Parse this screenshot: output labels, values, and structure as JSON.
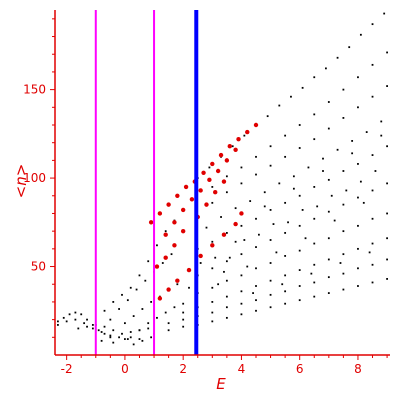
{
  "chart_data": {
    "type": "scatter",
    "xlabel": "E",
    "ylabel": "<n>",
    "xlim": [
      -2.4,
      9.1
    ],
    "ylim": [
      0,
      195
    ],
    "xticks": [
      -2,
      0,
      2,
      4,
      6,
      8
    ],
    "yticks": [
      50,
      100,
      150
    ],
    "grid": false,
    "colors": {
      "axis": "#e00000",
      "black_points": "#000000",
      "red_points": "#e00000",
      "magenta_lines": "#ff00ff",
      "blue_line": "#0000ff"
    },
    "vertical_lines": [
      {
        "x": -1.0,
        "color": "#ff00ff"
      },
      {
        "x": 1.0,
        "color": "#ff00ff"
      },
      {
        "x": 2.45,
        "color": "#0000ff"
      }
    ],
    "series": [
      {
        "points_black": [
          [
            -2.3,
            19
          ],
          [
            -2.1,
            21
          ],
          [
            -1.9,
            23
          ],
          [
            -1.7,
            24
          ],
          [
            -1.5,
            23
          ],
          [
            -1.3,
            20
          ],
          [
            -1.1,
            17
          ],
          [
            -0.9,
            14
          ],
          [
            -0.7,
            12
          ],
          [
            -0.5,
            10
          ],
          [
            -2.3,
            17
          ],
          [
            -2.0,
            19
          ],
          [
            -1.7,
            20
          ],
          [
            -1.4,
            18
          ],
          [
            -1.1,
            15
          ],
          [
            -0.8,
            13
          ],
          [
            -0.5,
            11
          ],
          [
            -0.2,
            10
          ],
          [
            0.1,
            9
          ],
          [
            -1.6,
            15
          ],
          [
            -1.3,
            16
          ],
          [
            -1.0,
            17
          ],
          [
            -0.7,
            16
          ],
          [
            -0.4,
            14
          ],
          [
            -0.1,
            12
          ],
          [
            0.2,
            10
          ],
          [
            0.5,
            9
          ],
          [
            -0.8,
            8
          ],
          [
            -0.4,
            7
          ],
          [
            0.0,
            9
          ],
          [
            0.3,
            6
          ],
          [
            0.6,
            8
          ],
          [
            0.9,
            10
          ],
          [
            0.2,
            13
          ],
          [
            0.5,
            14
          ],
          [
            0.8,
            15
          ],
          [
            -0.7,
            25
          ],
          [
            -0.4,
            30
          ],
          [
            -0.1,
            34
          ],
          [
            0.2,
            38
          ],
          [
            0.5,
            45
          ],
          [
            0.8,
            53
          ],
          [
            1.1,
            62
          ],
          [
            1.4,
            70
          ],
          [
            1.7,
            76
          ],
          [
            -0.5,
            20
          ],
          [
            -0.2,
            26
          ],
          [
            0.1,
            31
          ],
          [
            0.4,
            37
          ],
          [
            0.7,
            42
          ],
          [
            1.0,
            47
          ],
          [
            1.3,
            52
          ],
          [
            1.6,
            57
          ],
          [
            0.0,
            18
          ],
          [
            0.3,
            22
          ],
          [
            0.6,
            26
          ],
          [
            0.9,
            30
          ],
          [
            1.2,
            33
          ],
          [
            1.5,
            37
          ],
          [
            1.8,
            40
          ],
          [
            0.5,
            14
          ],
          [
            0.8,
            18
          ],
          [
            1.1,
            21
          ],
          [
            1.4,
            24
          ],
          [
            1.7,
            27
          ],
          [
            2.0,
            29
          ],
          [
            2.5,
            100
          ],
          [
            2.9,
            106
          ],
          [
            3.3,
            112
          ],
          [
            3.7,
            118
          ],
          [
            4.1,
            124
          ],
          [
            4.5,
            130
          ],
          [
            4.9,
            135
          ],
          [
            5.3,
            141
          ],
          [
            5.7,
            146
          ],
          [
            6.1,
            151
          ],
          [
            6.5,
            157
          ],
          [
            6.9,
            162
          ],
          [
            7.3,
            168
          ],
          [
            7.7,
            174
          ],
          [
            8.1,
            181
          ],
          [
            8.5,
            187
          ],
          [
            8.9,
            193
          ],
          [
            3.0,
            95
          ],
          [
            3.5,
            101
          ],
          [
            4.0,
            106
          ],
          [
            4.5,
            112
          ],
          [
            5.0,
            118
          ],
          [
            5.5,
            124
          ],
          [
            6.0,
            130
          ],
          [
            6.5,
            136
          ],
          [
            7.0,
            143
          ],
          [
            7.5,
            150
          ],
          [
            8.0,
            157
          ],
          [
            8.5,
            164
          ],
          [
            9.0,
            171
          ],
          [
            3.0,
            86
          ],
          [
            3.5,
            92
          ],
          [
            4.0,
            97
          ],
          [
            4.5,
            102
          ],
          [
            5.0,
            107
          ],
          [
            5.5,
            112
          ],
          [
            6.0,
            117
          ],
          [
            6.5,
            122
          ],
          [
            7.0,
            128
          ],
          [
            7.5,
            134
          ],
          [
            8.0,
            140
          ],
          [
            8.5,
            146
          ],
          [
            9.0,
            152
          ],
          [
            2.8,
            72
          ],
          [
            3.3,
            78
          ],
          [
            3.8,
            83
          ],
          [
            4.3,
            87
          ],
          [
            4.8,
            92
          ],
          [
            5.3,
            97
          ],
          [
            5.8,
            101
          ],
          [
            6.3,
            106
          ],
          [
            6.8,
            111
          ],
          [
            7.3,
            116
          ],
          [
            7.8,
            121
          ],
          [
            8.3,
            126
          ],
          [
            8.8,
            132
          ],
          [
            2.5,
            60
          ],
          [
            3.0,
            64
          ],
          [
            3.5,
            69
          ],
          [
            4.0,
            73
          ],
          [
            4.5,
            77
          ],
          [
            5.0,
            82
          ],
          [
            5.5,
            86
          ],
          [
            6.0,
            90
          ],
          [
            6.5,
            95
          ],
          [
            7.0,
            99
          ],
          [
            7.5,
            104
          ],
          [
            8.0,
            108
          ],
          [
            8.5,
            113
          ],
          [
            9.0,
            118
          ],
          [
            2.5,
            45
          ],
          [
            3.0,
            49
          ],
          [
            3.5,
            53
          ],
          [
            4.0,
            57
          ],
          [
            4.5,
            61
          ],
          [
            5.0,
            65
          ],
          [
            5.5,
            69
          ],
          [
            6.0,
            73
          ],
          [
            6.5,
            77
          ],
          [
            7.0,
            81
          ],
          [
            7.5,
            85
          ],
          [
            8.0,
            89
          ],
          [
            8.5,
            93
          ],
          [
            9.0,
            97
          ],
          [
            2.5,
            35
          ],
          [
            3.0,
            38
          ],
          [
            3.5,
            42
          ],
          [
            4.0,
            45
          ],
          [
            4.5,
            49
          ],
          [
            5.0,
            52
          ],
          [
            5.5,
            56
          ],
          [
            6.0,
            59
          ],
          [
            6.5,
            63
          ],
          [
            7.0,
            66
          ],
          [
            7.5,
            70
          ],
          [
            8.0,
            73
          ],
          [
            8.5,
            77
          ],
          [
            9.0,
            80
          ],
          [
            2.0,
            24
          ],
          [
            2.5,
            27
          ],
          [
            3.0,
            30
          ],
          [
            3.5,
            33
          ],
          [
            4.0,
            36
          ],
          [
            4.5,
            39
          ],
          [
            5.0,
            42
          ],
          [
            5.5,
            45
          ],
          [
            6.0,
            48
          ],
          [
            6.5,
            51
          ],
          [
            7.0,
            54
          ],
          [
            7.5,
            57
          ],
          [
            8.0,
            60
          ],
          [
            8.5,
            63
          ],
          [
            9.0,
            66
          ],
          [
            1.5,
            18
          ],
          [
            2.0,
            20
          ],
          [
            2.5,
            22
          ],
          [
            3.0,
            24
          ],
          [
            3.5,
            27
          ],
          [
            4.0,
            29
          ],
          [
            4.5,
            31
          ],
          [
            5.0,
            34
          ],
          [
            5.5,
            36
          ],
          [
            6.0,
            39
          ],
          [
            6.5,
            41
          ],
          [
            7.0,
            44
          ],
          [
            7.5,
            46
          ],
          [
            8.0,
            49
          ],
          [
            8.5,
            51
          ],
          [
            9.0,
            54
          ],
          [
            1.0,
            12
          ],
          [
            1.5,
            14
          ],
          [
            2.0,
            16
          ],
          [
            2.5,
            17
          ],
          [
            3.0,
            19
          ],
          [
            3.5,
            21
          ],
          [
            4.0,
            23
          ],
          [
            4.5,
            25
          ],
          [
            5.0,
            27
          ],
          [
            5.5,
            29
          ],
          [
            6.0,
            31
          ],
          [
            6.5,
            33
          ],
          [
            7.0,
            35
          ],
          [
            7.5,
            37
          ],
          [
            8.0,
            39
          ],
          [
            8.5,
            41
          ],
          [
            9.0,
            43
          ],
          [
            3.2,
            40
          ],
          [
            3.6,
            55
          ],
          [
            4.2,
            50
          ],
          [
            4.6,
            68
          ],
          [
            5.2,
            58
          ],
          [
            5.6,
            75
          ],
          [
            6.2,
            66
          ],
          [
            6.6,
            84
          ],
          [
            7.2,
            76
          ],
          [
            7.6,
            93
          ],
          [
            8.2,
            86
          ],
          [
            8.6,
            104
          ],
          [
            3.8,
            64
          ],
          [
            4.8,
            84
          ],
          [
            5.8,
            94
          ],
          [
            6.8,
            104
          ],
          [
            7.8,
            114
          ],
          [
            8.8,
            124
          ],
          [
            3.1,
            55
          ],
          [
            4.1,
            65
          ],
          [
            5.1,
            74
          ],
          [
            6.1,
            82
          ],
          [
            7.1,
            90
          ],
          [
            8.1,
            98
          ],
          [
            2.2,
            38
          ],
          [
            2.6,
            52
          ],
          [
            3.4,
            47
          ],
          [
            4.4,
            35
          ],
          [
            5.4,
            40
          ],
          [
            6.4,
            46
          ],
          [
            7.4,
            52
          ],
          [
            8.4,
            58
          ]
        ]
      },
      {
        "points_red": [
          [
            0.9,
            75
          ],
          [
            1.2,
            80
          ],
          [
            1.5,
            85
          ],
          [
            1.8,
            90
          ],
          [
            2.1,
            95
          ],
          [
            2.4,
            98
          ],
          [
            2.7,
            103
          ],
          [
            3.0,
            108
          ],
          [
            3.3,
            113
          ],
          [
            3.6,
            118
          ],
          [
            3.9,
            122
          ],
          [
            4.2,
            126
          ],
          [
            4.5,
            130
          ],
          [
            1.4,
            68
          ],
          [
            1.7,
            75
          ],
          [
            2.0,
            82
          ],
          [
            2.3,
            88
          ],
          [
            2.6,
            93
          ],
          [
            2.9,
            99
          ],
          [
            3.2,
            104
          ],
          [
            3.5,
            110
          ],
          [
            3.8,
            116
          ],
          [
            1.1,
            50
          ],
          [
            1.4,
            55
          ],
          [
            1.7,
            62
          ],
          [
            2.0,
            70
          ],
          [
            2.5,
            78
          ],
          [
            2.8,
            85
          ],
          [
            3.1,
            92
          ],
          [
            3.4,
            98
          ],
          [
            1.2,
            32
          ],
          [
            1.5,
            37
          ],
          [
            1.8,
            42
          ],
          [
            2.2,
            48
          ],
          [
            2.6,
            56
          ],
          [
            3.0,
            62
          ],
          [
            3.4,
            68
          ],
          [
            3.8,
            74
          ],
          [
            4.0,
            80
          ]
        ]
      }
    ]
  }
}
